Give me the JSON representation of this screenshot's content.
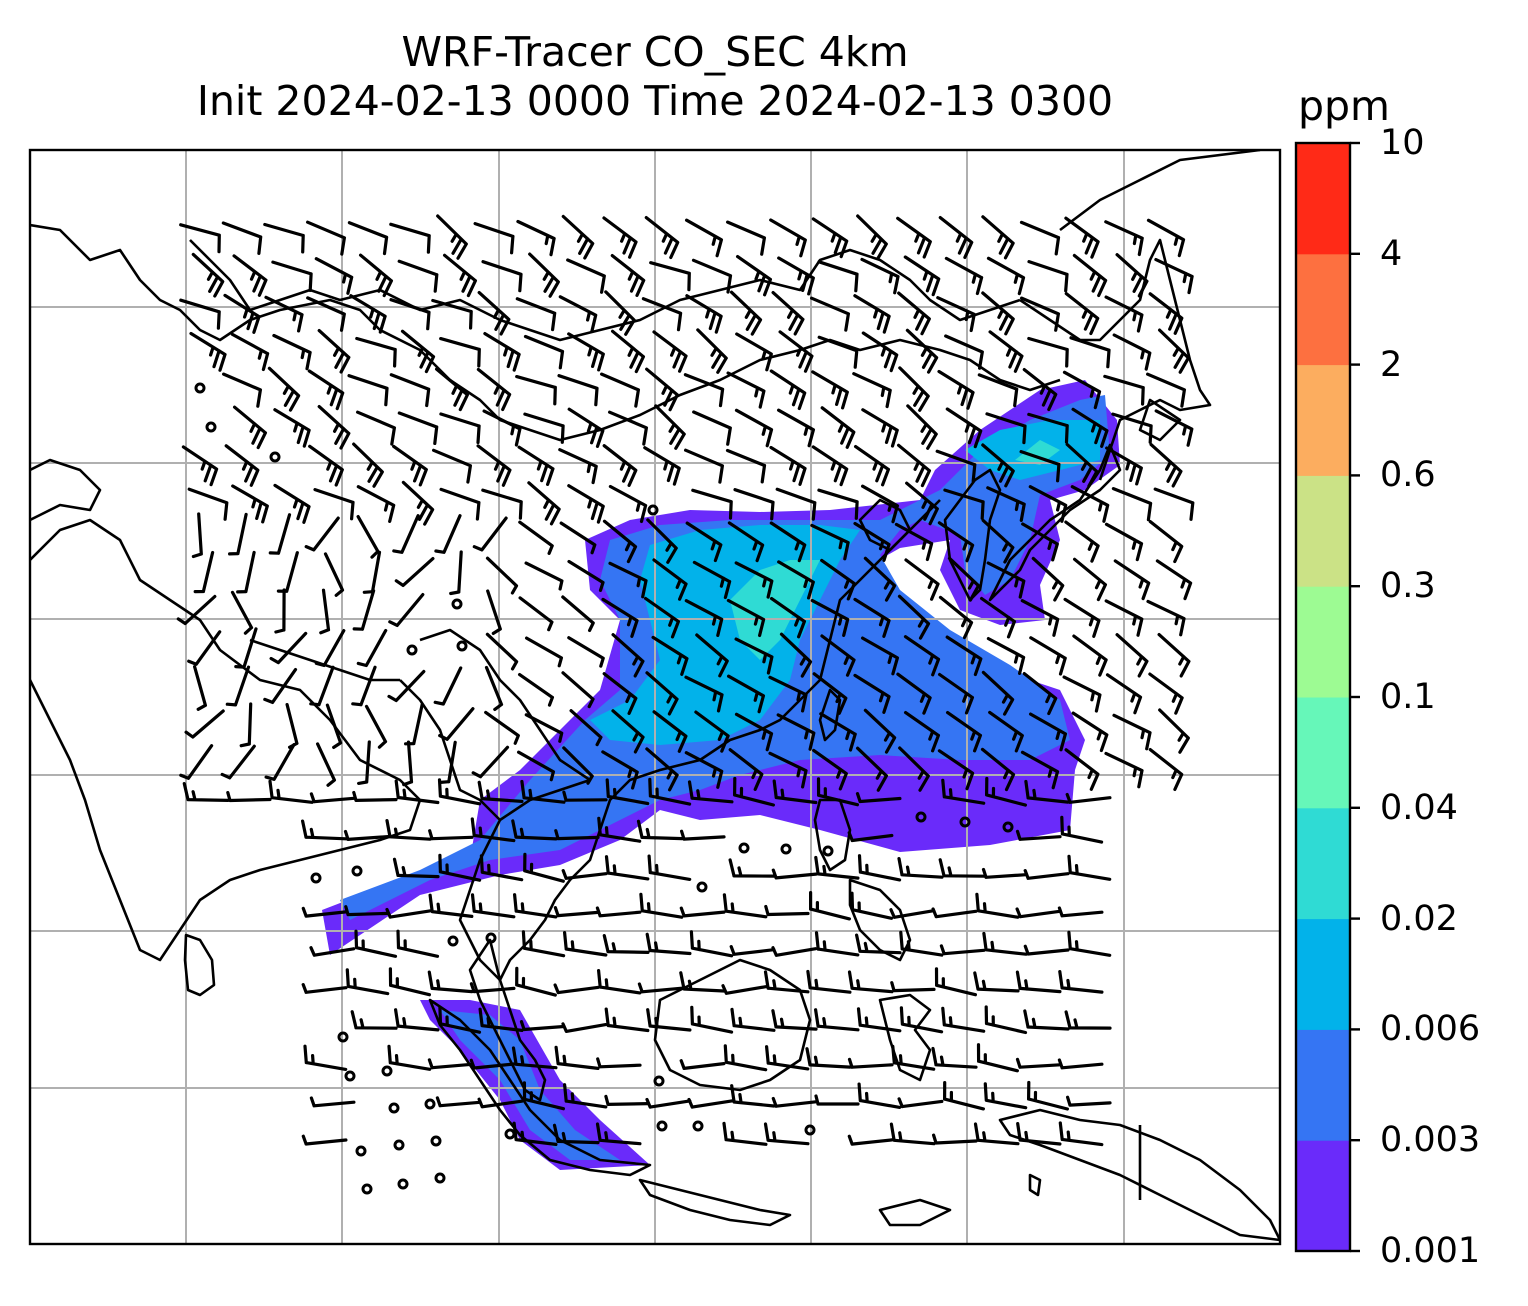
{
  "title": {
    "line1": "WRF-Tracer CO_SEC 4km",
    "line2": "Init 2024-02-13 0000 Time 2024-02-13 0300"
  },
  "colorbar": {
    "unit": "ppm",
    "ticks": [
      "0.001",
      "0.003",
      "0.006",
      "0.02",
      "0.04",
      "0.1",
      "0.3",
      "0.6",
      "2",
      "4",
      "10"
    ],
    "colors": [
      "#6a2bfa",
      "#3575f3",
      "#02b2ea",
      "#2fdbd4",
      "#66f7b9",
      "#9dfb93",
      "#cbe286",
      "#fcad5f",
      "#fd7040",
      "#ff2a17"
    ]
  },
  "map": {
    "gridlines": true,
    "coastline_color": "#000000",
    "barb_color": "#000000",
    "grid_color": "#b0b0b0"
  }
}
